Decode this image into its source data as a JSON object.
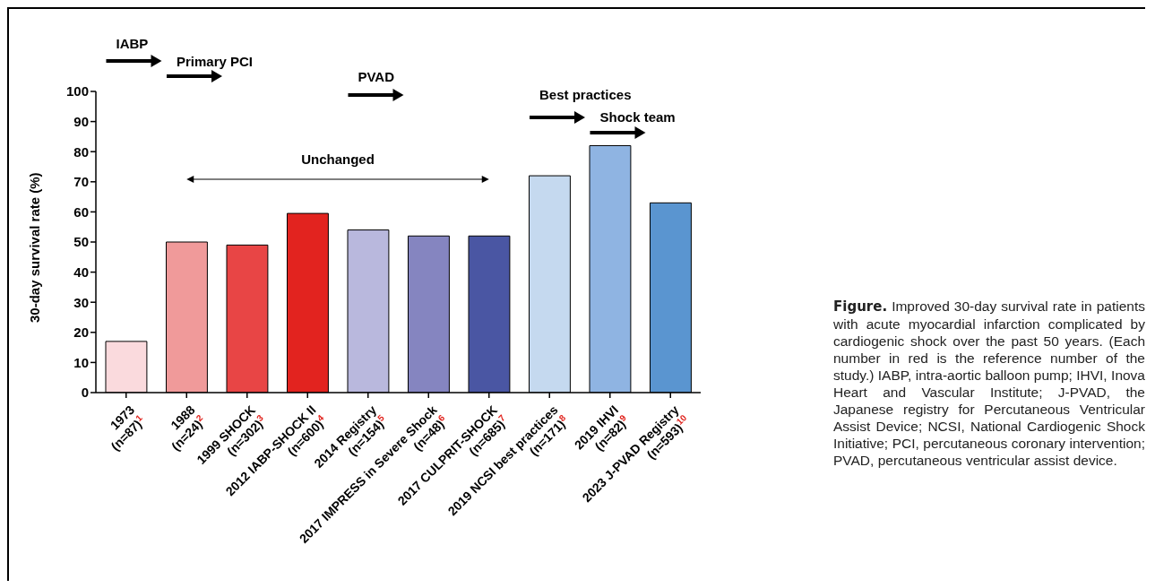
{
  "chart_data": {
    "type": "bar",
    "ylabel": "30-day survival rate (%)",
    "categories": [
      "1973\n(n=87)$^{1}$",
      "1988\n(n=24)$^{2}$",
      "1999 SHOCK\n(n=302)$^{3}$",
      "2012 IABP-SHOCK II\n(n=600)$^{4}$",
      "2014 Registry\n(n=154)$^{5}$",
      "2017 IMPRESS in Severe Shock\n(n=48)$^{6}$",
      "2017 CULPRIT-SHOCK\n(n=685)$^{7}$",
      "2019 NCSI best practices\n(n=171)$^{8}$",
      "2019 IHVI\n(n=82)$^{9}$",
      "2023 J-PVAD Registry\n(n=593)$^{10}$"
    ],
    "values": [
      17,
      50,
      49,
      59.5,
      54,
      52,
      52,
      72,
      82,
      63
    ],
    "colors": [
      "#fadadd",
      "#f09a9a",
      "#e84545",
      "#e2231f",
      "#b9b8dd",
      "#8585c0",
      "#4a56a3",
      "#c5d9ef",
      "#8fb4e2",
      "#5a95d0"
    ],
    "ylim": [
      0,
      100
    ],
    "yticks": [
      0,
      10,
      20,
      30,
      40,
      50,
      60,
      70,
      80,
      90,
      100
    ],
    "grid": false,
    "legend": false,
    "annotations": [
      "IABP",
      "Primary PCI",
      "PVAD",
      "Best practices",
      "Shock team",
      "Unchanged",
      "Figure. Improved 30-day survival rate in patients with acute myocardial infarction complicated by cardiogenic shock over the past 50 years. (Each number in red is the reference number of the study.) IABP, intra-aortic balloon pump; IHVI, Inova Heart and Vascular Institute; J-PVAD, the Japanese registry for Percutaneous Ventricular Assist Device; NCSI, National Cardiogenic Shock Initiative; PCI, percutaneous coronary intervention; PVAD, percutaneous ventricular assist device."
    ]
  }
}
